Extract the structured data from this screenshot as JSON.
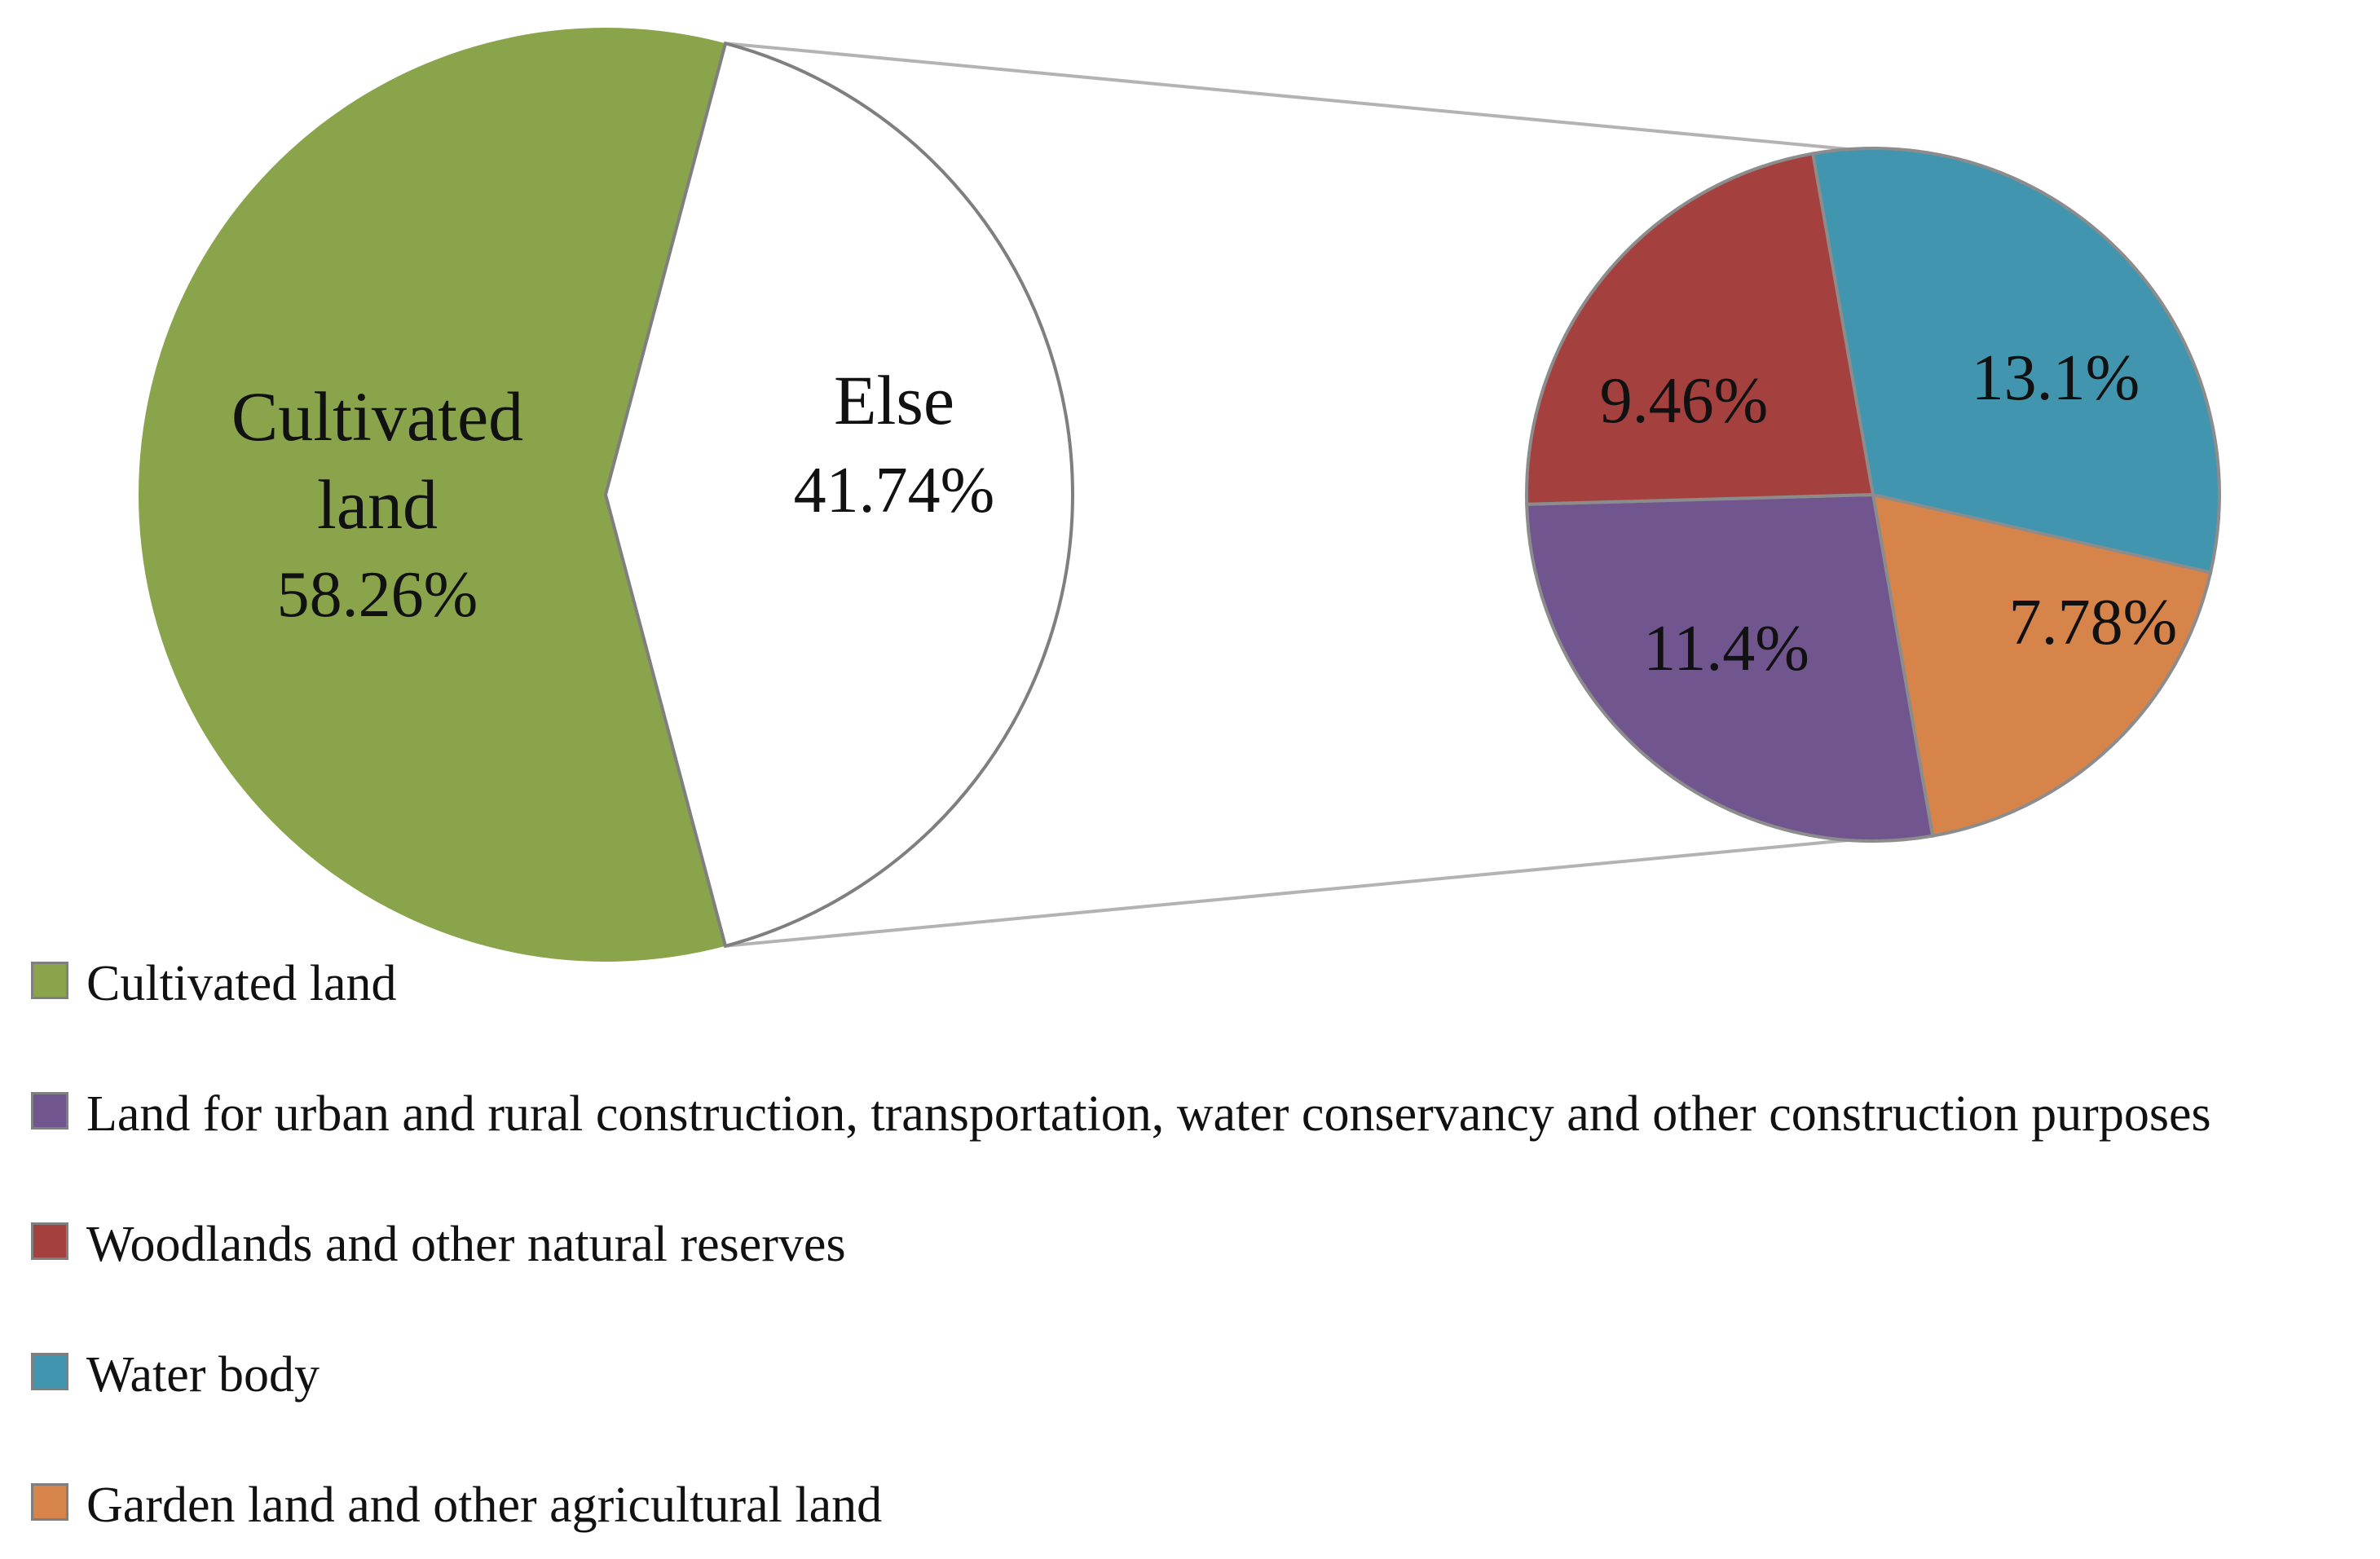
{
  "chart_data": {
    "type": "pie",
    "subtype": "pie-of-pie",
    "title": "",
    "main_pie": {
      "slices": [
        {
          "key": "cultivated",
          "label_lines": [
            "Cultivated",
            "land"
          ],
          "value_text": "58.26%",
          "value": 58.26,
          "color": "#8AA44B"
        },
        {
          "key": "else",
          "label_lines": [
            "Else"
          ],
          "value_text": "41.74%",
          "value": 41.74,
          "color": "#FFFFFF"
        }
      ]
    },
    "secondary_pie": {
      "slices": [
        {
          "key": "water",
          "value_text": "13.1%",
          "value": 13.1,
          "color": "#4195AE"
        },
        {
          "key": "garden",
          "value_text": "7.78%",
          "value": 7.78,
          "color": "#D6844A"
        },
        {
          "key": "construction",
          "value_text": "11.4%",
          "value": 11.4,
          "color": "#70558F"
        },
        {
          "key": "woodlands",
          "value_text": "9.46%",
          "value": 9.46,
          "color": "#A4413F"
        }
      ]
    },
    "legend": {
      "position": "bottom-left",
      "items": [
        {
          "label": "Cultivated land",
          "color": "#8AA44B"
        },
        {
          "label": "Land for urban and rural construction, transportation, water conservancy and other construction purposes",
          "color": "#70558F"
        },
        {
          "label": "Woodlands and other natural reserves",
          "color": "#A4413F"
        },
        {
          "label": "Water body",
          "color": "#4195AE"
        },
        {
          "label": "Garden land and other agricultural land",
          "color": "#D6844A"
        }
      ]
    }
  }
}
